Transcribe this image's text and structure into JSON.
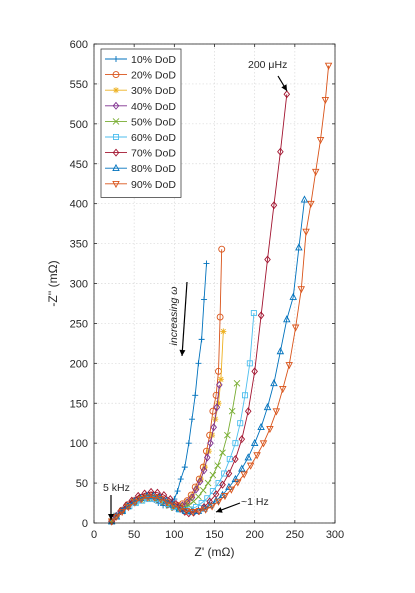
{
  "chart_data": {
    "type": "scatter",
    "title": "",
    "xlabel": "Z' (mΩ)",
    "ylabel": "-Z'' (mΩ)",
    "xlim": [
      0,
      300
    ],
    "ylim": [
      0,
      600
    ],
    "xticks": [
      "0",
      "50",
      "100",
      "150",
      "200",
      "250",
      "300"
    ],
    "yticks": [
      "0",
      "50",
      "100",
      "150",
      "200",
      "250",
      "300",
      "350",
      "400",
      "450",
      "500",
      "550",
      "600"
    ],
    "grid": true,
    "legend_position": "top-left",
    "annotations": {
      "top": "200 μHz",
      "mid": "increasing ω",
      "left": "5 kHz",
      "right": "~1 Hz"
    },
    "series": [
      {
        "name": "10% DoD",
        "color": "#0072BD",
        "marker": "plus",
        "x": [
          22,
          27,
          33,
          39,
          45,
          51,
          57,
          63,
          69,
          75,
          80,
          86,
          90,
          95,
          100,
          104,
          108,
          113,
          118,
          122,
          126,
          130,
          134,
          137,
          140
        ],
        "y": [
          2,
          8,
          14,
          20,
          25,
          29,
          32,
          33,
          32,
          29,
          25,
          22,
          22,
          25,
          30,
          40,
          55,
          70,
          100,
          130,
          160,
          200,
          230,
          280,
          325
        ]
      },
      {
        "name": "20% DoD",
        "color": "#D95319",
        "marker": "circle",
        "x": [
          22,
          28,
          35,
          42,
          50,
          58,
          65,
          72,
          79,
          86,
          92,
          98,
          104,
          110,
          116,
          121,
          126,
          131,
          136,
          140,
          144,
          148,
          152,
          155,
          157,
          159
        ],
        "y": [
          2,
          9,
          16,
          23,
          28,
          32,
          34,
          34,
          32,
          28,
          24,
          22,
          22,
          24,
          28,
          35,
          45,
          55,
          70,
          90,
          110,
          140,
          160,
          190,
          258,
          343
        ]
      },
      {
        "name": "30% DoD",
        "color": "#EDB120",
        "marker": "asterisk",
        "x": [
          22,
          28,
          35,
          42,
          50,
          58,
          65,
          72,
          79,
          86,
          92,
          98,
          104,
          110,
          116,
          122,
          128,
          133,
          138,
          143,
          147,
          151,
          155,
          158,
          161
        ],
        "y": [
          2,
          9,
          16,
          22,
          27,
          31,
          33,
          33,
          31,
          27,
          23,
          21,
          21,
          23,
          27,
          34,
          44,
          55,
          70,
          90,
          110,
          130,
          150,
          180,
          240
        ]
      },
      {
        "name": "40% DoD",
        "color": "#7E2F8E",
        "marker": "diamond",
        "x": [
          22,
          28,
          35,
          42,
          50,
          58,
          65,
          72,
          79,
          86,
          92,
          98,
          104,
          110,
          116,
          122,
          127,
          132,
          137,
          141,
          145,
          149,
          153,
          156
        ],
        "y": [
          2,
          9,
          15,
          21,
          26,
          30,
          32,
          32,
          30,
          27,
          23,
          20,
          20,
          22,
          26,
          32,
          42,
          52,
          66,
          82,
          100,
          120,
          145,
          173
        ]
      },
      {
        "name": "50% DoD",
        "color": "#77AC30",
        "marker": "cross",
        "x": [
          22,
          28,
          35,
          42,
          50,
          58,
          66,
          74,
          81,
          88,
          94,
          100,
          106,
          112,
          118,
          124,
          130,
          136,
          142,
          148,
          154,
          160,
          166,
          172,
          178
        ],
        "y": [
          2,
          9,
          15,
          21,
          26,
          29,
          31,
          31,
          29,
          26,
          22,
          19,
          18,
          19,
          22,
          27,
          33,
          41,
          50,
          60,
          72,
          88,
          110,
          140,
          175
        ]
      },
      {
        "name": "60% DoD",
        "color": "#4DBEEE",
        "marker": "square",
        "x": [
          22,
          28,
          36,
          44,
          52,
          60,
          68,
          76,
          84,
          92,
          99,
          106,
          113,
          120,
          127,
          134,
          141,
          148,
          155,
          162,
          169,
          176,
          182,
          188,
          194,
          199
        ],
        "y": [
          2,
          9,
          15,
          21,
          25,
          28,
          30,
          30,
          28,
          24,
          20,
          17,
          16,
          17,
          20,
          25,
          31,
          40,
          50,
          62,
          80,
          100,
          125,
          160,
          200,
          263
        ]
      },
      {
        "name": "70% DoD",
        "color": "#A2142F",
        "marker": "diamond",
        "x": [
          22,
          27,
          33,
          40,
          47,
          55,
          63,
          71,
          79,
          87,
          95,
          102,
          108,
          113,
          118,
          124,
          130,
          137,
          144,
          152,
          160,
          168,
          176,
          184,
          192,
          200,
          208,
          216,
          224,
          232,
          240
        ],
        "y": [
          2,
          8,
          15,
          22,
          28,
          34,
          37,
          39,
          38,
          35,
          30,
          24,
          18,
          14,
          12,
          13,
          15,
          20,
          27,
          36,
          48,
          62,
          80,
          105,
          140,
          190,
          260,
          330,
          398,
          465,
          537
        ]
      },
      {
        "name": "80% DoD",
        "color": "#0072BD",
        "marker": "triangle",
        "x": [
          22,
          28,
          35,
          42,
          50,
          58,
          66,
          74,
          82,
          90,
          98,
          106,
          114,
          122,
          130,
          137,
          144,
          152,
          160,
          168,
          176,
          184,
          192,
          200,
          208,
          216,
          224,
          232,
          240,
          248,
          255,
          262
        ],
        "y": [
          2,
          8,
          15,
          21,
          27,
          31,
          34,
          34,
          32,
          28,
          23,
          18,
          15,
          14,
          15,
          18,
          22,
          28,
          35,
          45,
          55,
          68,
          82,
          100,
          120,
          145,
          175,
          215,
          255,
          283,
          345,
          405
        ]
      },
      {
        "name": "90% DoD",
        "color": "#D95319",
        "marker": "triangledown",
        "x": [
          22,
          28,
          35,
          43,
          51,
          59,
          67,
          75,
          83,
          91,
          99,
          107,
          115,
          123,
          131,
          139,
          147,
          155,
          163,
          171,
          179,
          187,
          195,
          203,
          211,
          219,
          227,
          235,
          243,
          251,
          258,
          264,
          270,
          276,
          282,
          288,
          292
        ],
        "y": [
          2,
          8,
          14,
          20,
          26,
          30,
          32,
          32,
          30,
          26,
          22,
          18,
          15,
          14,
          15,
          17,
          21,
          27,
          34,
          42,
          51,
          61,
          72,
          85,
          100,
          118,
          140,
          168,
          198,
          245,
          293,
          365,
          400,
          440,
          480,
          530,
          573
        ]
      }
    ]
  }
}
